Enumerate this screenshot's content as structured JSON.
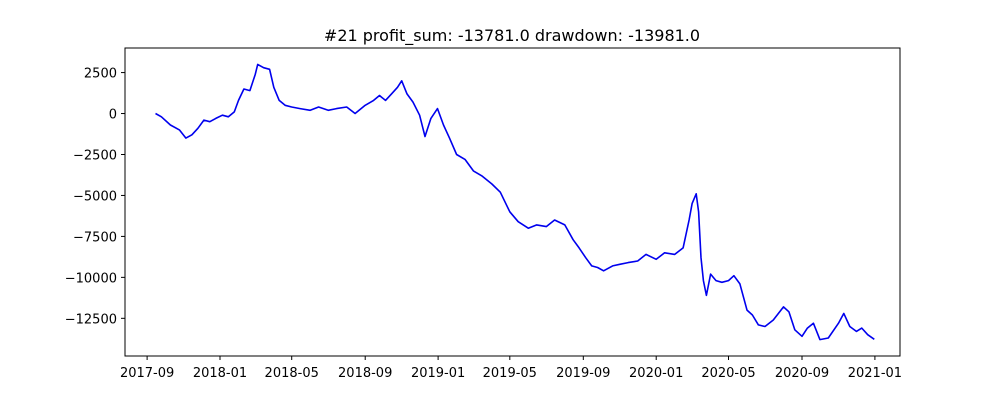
{
  "chart_data": {
    "type": "line",
    "title": "#21   profit_sum: -13781.0 drawdown: -13981.0",
    "xlabel": "",
    "ylabel": "",
    "x_ticks": [
      "2017-09",
      "2018-01",
      "2018-05",
      "2018-09",
      "2019-01",
      "2019-05",
      "2019-09",
      "2020-01",
      "2020-05",
      "2020-09",
      "2021-01"
    ],
    "y_ticks": [
      "2500",
      "0",
      "−2500",
      "−5000",
      "−7500",
      "−10000",
      "−12500"
    ],
    "y_tick_values": [
      2500,
      0,
      -2500,
      -5000,
      -7500,
      -10000,
      -12500
    ],
    "xlim": [
      "2017-07-26",
      "2021-02-12"
    ],
    "ylim": [
      -14800,
      4000
    ],
    "grid": false,
    "series": [
      {
        "color": "#0000ee",
        "x": [
          "2017-09-15",
          "2017-09-25",
          "2017-10-10",
          "2017-10-25",
          "2017-11-05",
          "2017-11-15",
          "2017-11-25",
          "2017-12-05",
          "2017-12-15",
          "2017-12-25",
          "2018-01-05",
          "2018-01-15",
          "2018-01-25",
          "2018-02-01",
          "2018-02-10",
          "2018-02-20",
          "2018-03-01",
          "2018-03-05",
          "2018-03-15",
          "2018-03-25",
          "2018-04-01",
          "2018-04-10",
          "2018-04-20",
          "2018-05-01",
          "2018-05-15",
          "2018-06-01",
          "2018-06-15",
          "2018-07-01",
          "2018-07-15",
          "2018-08-01",
          "2018-08-15",
          "2018-09-01",
          "2018-09-15",
          "2018-09-25",
          "2018-10-05",
          "2018-10-15",
          "2018-10-25",
          "2018-11-01",
          "2018-11-10",
          "2018-11-20",
          "2018-12-01",
          "2018-12-10",
          "2018-12-20",
          "2018-12-31",
          "2019-01-10",
          "2019-01-20",
          "2019-02-01",
          "2019-02-15",
          "2019-03-01",
          "2019-03-15",
          "2019-04-01",
          "2019-04-15",
          "2019-05-01",
          "2019-05-15",
          "2019-06-01",
          "2019-06-15",
          "2019-07-01",
          "2019-07-15",
          "2019-08-01",
          "2019-08-15",
          "2019-08-25",
          "2019-09-05",
          "2019-09-15",
          "2019-09-25",
          "2019-10-05",
          "2019-10-20",
          "2019-11-01",
          "2019-11-15",
          "2019-12-01",
          "2019-12-15",
          "2020-01-01",
          "2020-01-15",
          "2020-02-01",
          "2020-02-15",
          "2020-02-25",
          "2020-03-01",
          "2020-03-08",
          "2020-03-12",
          "2020-03-16",
          "2020-03-20",
          "2020-03-25",
          "2020-04-01",
          "2020-04-10",
          "2020-04-20",
          "2020-05-01",
          "2020-05-10",
          "2020-05-20",
          "2020-06-01",
          "2020-06-10",
          "2020-06-20",
          "2020-07-01",
          "2020-07-15",
          "2020-08-01",
          "2020-08-10",
          "2020-08-20",
          "2020-09-01",
          "2020-09-10",
          "2020-09-20",
          "2020-10-01",
          "2020-10-15",
          "2020-11-01",
          "2020-11-10",
          "2020-11-20",
          "2020-12-01",
          "2020-12-10",
          "2020-12-20",
          "2020-12-31"
        ],
        "y": [
          0,
          -200,
          -700,
          -1000,
          -1500,
          -1300,
          -900,
          -400,
          -500,
          -300,
          -100,
          -200,
          100,
          800,
          1500,
          1400,
          2400,
          3000,
          2800,
          2700,
          1600,
          800,
          500,
          400,
          300,
          200,
          400,
          200,
          300,
          400,
          0,
          500,
          800,
          1100,
          800,
          1200,
          1600,
          2000,
          1200,
          700,
          -100,
          -1400,
          -300,
          300,
          -700,
          -1500,
          -2500,
          -2800,
          -3500,
          -3800,
          -4300,
          -4800,
          -6000,
          -6600,
          -7000,
          -6800,
          -6900,
          -6500,
          -6800,
          -7700,
          -8200,
          -8800,
          -9300,
          -9400,
          -9600,
          -9300,
          -9200,
          -9100,
          -9000,
          -8600,
          -8900,
          -8500,
          -8600,
          -8200,
          -6500,
          -5500,
          -4900,
          -6000,
          -8800,
          -10200,
          -11100,
          -9800,
          -10200,
          -10300,
          -10200,
          -9900,
          -10400,
          -12000,
          -12300,
          -12900,
          -13000,
          -12600,
          -11800,
          -12100,
          -13200,
          -13600,
          -13100,
          -12800,
          -13800,
          -13700,
          -12800,
          -12200,
          -13000,
          -13300,
          -13100,
          -13500,
          -13781
        ]
      }
    ]
  }
}
